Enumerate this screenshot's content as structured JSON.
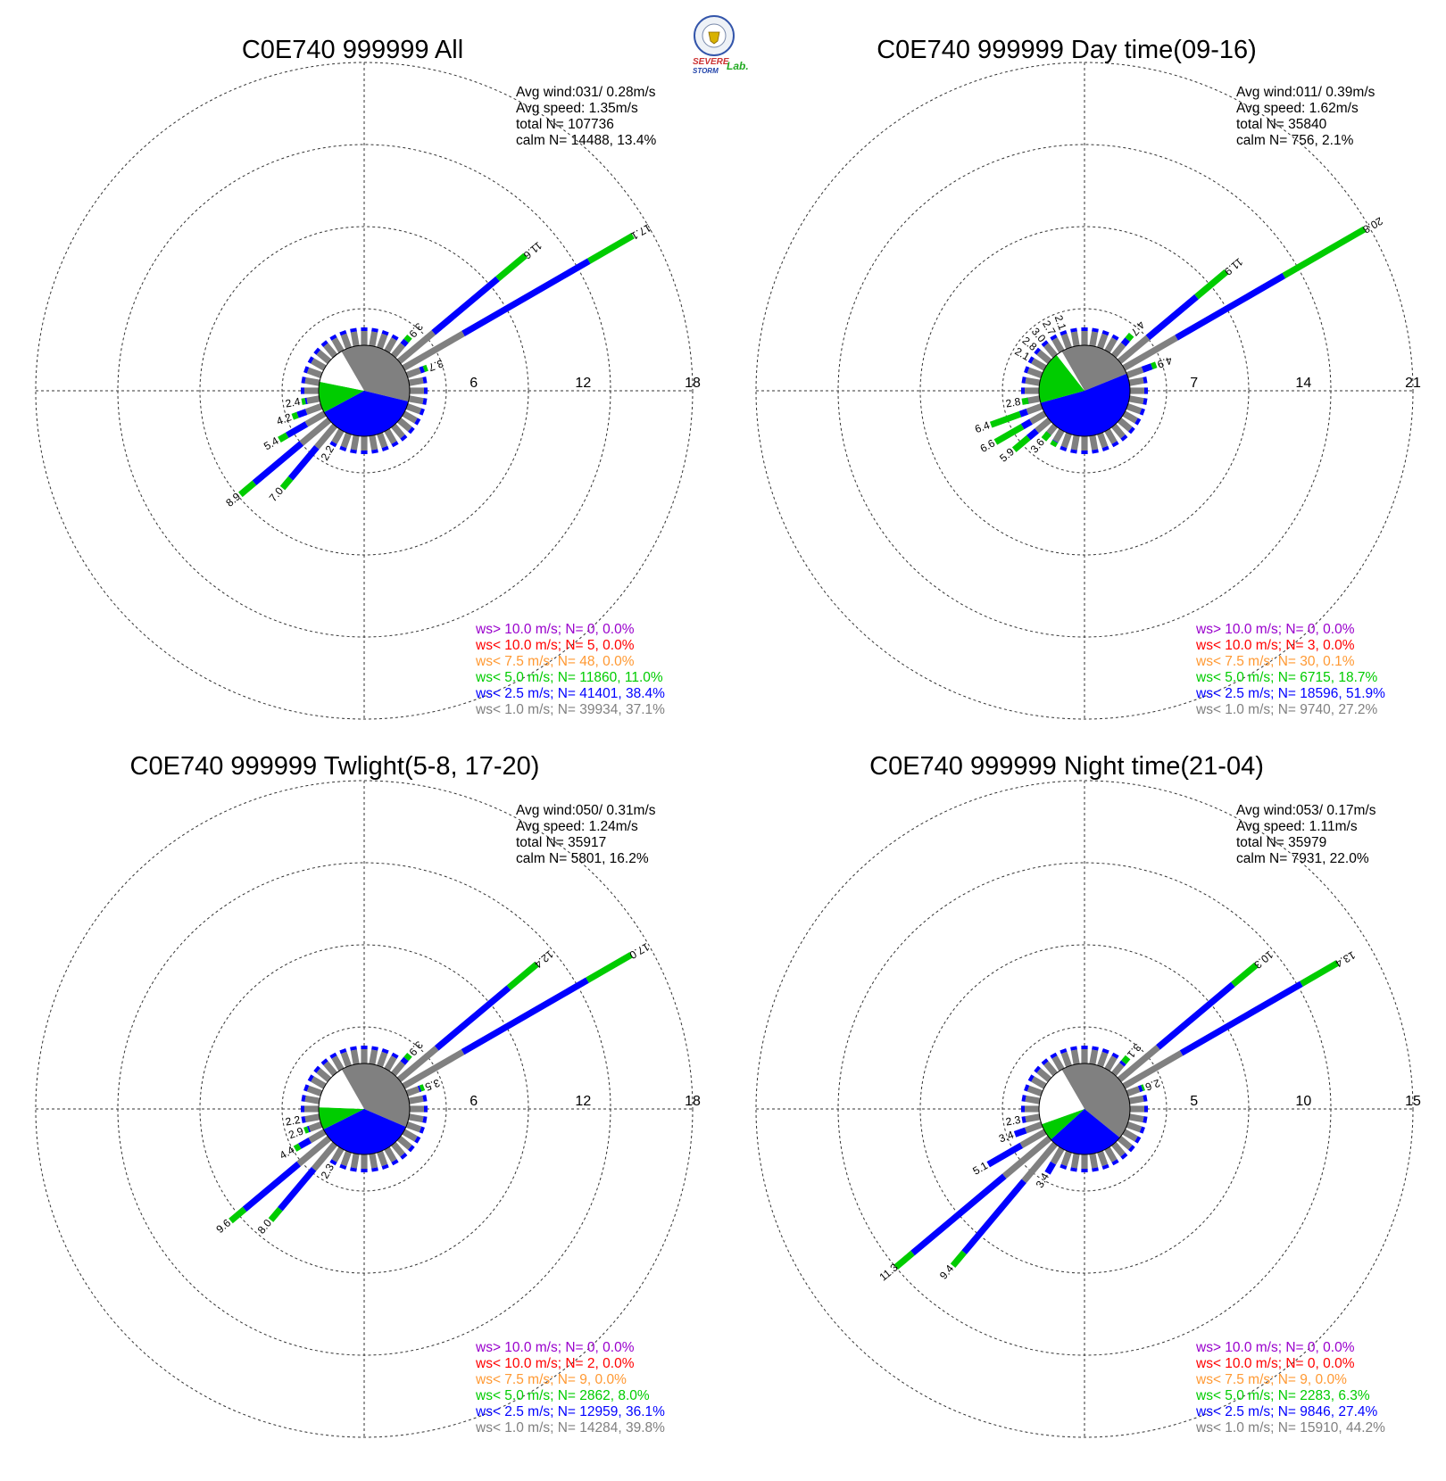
{
  "logo": {
    "text_a": "SEVERE",
    "text_b": "STORM",
    "text_c": "Lab."
  },
  "colors": {
    "ws_gt_10": "#9900cc",
    "ws_lt_10": "#ff0000",
    "ws_lt_7_5": "#ff9933",
    "ws_lt_5": "#00cc00",
    "ws_lt_2_5": "#0000ff",
    "ws_lt_1": "#808080",
    "calm": "#ffffff"
  },
  "chart_data": [
    {
      "type": "wind rose",
      "title": "C0E740 999999 All",
      "stats": [
        "Avg wind:031/ 0.28m/s",
        "Avg speed: 1.35m/s",
        "total N=     107736",
        "calm N=  14488,  13.4%"
      ],
      "rmax": 18,
      "ticks": [
        "6",
        "12",
        "18"
      ],
      "legend": [
        "ws> 10.0 m/s; N=     0,  0.0%",
        "ws< 10.0 m/s; N=     5,  0.0%",
        "ws<  7.5 m/s; N=    48,  0.0%",
        "ws<  5.0 m/s; N= 11860, 11.0%",
        "ws<  2.5 m/s; N= 41401, 38.4%",
        "ws<  1.0 m/s; N= 39934, 37.1%"
      ],
      "pie_deg": {
        "ws_lt_1": 133.6,
        "ws_lt_2_5": 138.2,
        "ws_lt_5": 39.6,
        "calm": 48.2
      },
      "petals": [
        {
          "dir": 0,
          "total": 1.8,
          "green": 0
        },
        {
          "dir": 10,
          "total": 1.8,
          "green": 0
        },
        {
          "dir": 20,
          "total": 2.0,
          "green": 0
        },
        {
          "dir": 30,
          "total": 2.6,
          "green": 0
        },
        {
          "dir": 40,
          "total": 3.9,
          "green": 0.3,
          "label": "3.9"
        },
        {
          "dir": 50,
          "total": 11.6,
          "green": 2.0,
          "label": "11.6"
        },
        {
          "dir": 60,
          "total": 17.1,
          "green": 2.8,
          "label": "17.1"
        },
        {
          "dir": 70,
          "total": 3.7,
          "green": 0.2,
          "label": "3.7"
        },
        {
          "dir": 80,
          "total": 2.2,
          "green": 0
        },
        {
          "dir": 90,
          "total": 1.5,
          "green": 0
        },
        {
          "dir": 100,
          "total": 1.5,
          "green": 0
        },
        {
          "dir": 110,
          "total": 1.5,
          "green": 0
        },
        {
          "dir": 120,
          "total": 1.5,
          "green": 0
        },
        {
          "dir": 130,
          "total": 1.5,
          "green": 0
        },
        {
          "dir": 140,
          "total": 1.5,
          "green": 0
        },
        {
          "dir": 150,
          "total": 1.5,
          "green": 0
        },
        {
          "dir": 160,
          "total": 1.5,
          "green": 0
        },
        {
          "dir": 170,
          "total": 1.5,
          "green": 0
        },
        {
          "dir": 180,
          "total": 1.5,
          "green": 0
        },
        {
          "dir": 190,
          "total": 1.7,
          "green": 0
        },
        {
          "dir": 200,
          "total": 2.0,
          "green": 0
        },
        {
          "dir": 210,
          "total": 2.2,
          "green": 0,
          "label": "2.2"
        },
        {
          "dir": 220,
          "total": 7.0,
          "green": 0.7,
          "label": "7.0"
        },
        {
          "dir": 230,
          "total": 8.9,
          "green": 1.0,
          "label": "8.9"
        },
        {
          "dir": 240,
          "total": 5.4,
          "green": 0.5,
          "label": "5.4"
        },
        {
          "dir": 250,
          "total": 4.2,
          "green": 0.3,
          "label": "4.2"
        },
        {
          "dir": 260,
          "total": 2.4,
          "green": 0.2,
          "label": "2.4"
        },
        {
          "dir": 270,
          "total": 2.0,
          "green": 0
        },
        {
          "dir": 280,
          "total": 2.0,
          "green": 0
        },
        {
          "dir": 290,
          "total": 2.0,
          "green": 0
        },
        {
          "dir": 300,
          "total": 2.0,
          "green": 0
        },
        {
          "dir": 310,
          "total": 2.2,
          "green": 0
        },
        {
          "dir": 320,
          "total": 2.0,
          "green": 0
        },
        {
          "dir": 330,
          "total": 2.0,
          "green": 0
        },
        {
          "dir": 340,
          "total": 2.0,
          "green": 0
        },
        {
          "dir": 350,
          "total": 1.9,
          "green": 0
        }
      ]
    },
    {
      "type": "wind rose",
      "title": "C0E740 999999 Day time(09-16)",
      "stats": [
        "Avg wind:011/ 0.39m/s",
        "Avg speed: 1.62m/s",
        "total N=      35840",
        "calm N=   756,   2.1%"
      ],
      "rmax": 21,
      "ticks": [
        "7",
        "14",
        "21"
      ],
      "legend": [
        "ws> 10.0 m/s; N=     0,  0.0%",
        "ws< 10.0 m/s; N=     3,  0.0%",
        "ws<  7.5 m/s; N=    30,  0.1%",
        "ws<  5.0 m/s; N=  6715, 18.7%",
        "ws<  2.5 m/s; N= 18596, 51.9%",
        "ws<  1.0 m/s; N=  9740, 27.2%"
      ],
      "pie_deg": {
        "ws_lt_1": 97.9,
        "ws_lt_2_5": 186.8,
        "ws_lt_5": 67.3,
        "calm": 8
      },
      "petals": [
        {
          "dir": 0,
          "total": 2.0,
          "green": 0
        },
        {
          "dir": 10,
          "total": 2.2,
          "green": 0
        },
        {
          "dir": 20,
          "total": 2.4,
          "green": 0
        },
        {
          "dir": 30,
          "total": 2.8,
          "green": 0
        },
        {
          "dir": 40,
          "total": 4.7,
          "green": 0.4,
          "label": "4.7"
        },
        {
          "dir": 50,
          "total": 11.9,
          "green": 2.5,
          "label": "11.9"
        },
        {
          "dir": 60,
          "total": 20.8,
          "green": 6.0,
          "label": "20.8"
        },
        {
          "dir": 70,
          "total": 4.9,
          "green": 0.3,
          "label": "4.9"
        },
        {
          "dir": 80,
          "total": 2.4,
          "green": 0
        },
        {
          "dir": 90,
          "total": 2.0,
          "green": 0
        },
        {
          "dir": 100,
          "total": 1.3,
          "green": 0
        },
        {
          "dir": 110,
          "total": 1.3,
          "green": 0
        },
        {
          "dir": 120,
          "total": 1.3,
          "green": 0
        },
        {
          "dir": 130,
          "total": 1.3,
          "green": 0
        },
        {
          "dir": 140,
          "total": 1.3,
          "green": 0
        },
        {
          "dir": 150,
          "total": 1.3,
          "green": 0
        },
        {
          "dir": 160,
          "total": 1.3,
          "green": 0
        },
        {
          "dir": 170,
          "total": 1.3,
          "green": 0
        },
        {
          "dir": 180,
          "total": 1.3,
          "green": 0
        },
        {
          "dir": 190,
          "total": 1.3,
          "green": 0
        },
        {
          "dir": 200,
          "total": 1.5,
          "green": 0
        },
        {
          "dir": 210,
          "total": 2.4,
          "green": 0.3
        },
        {
          "dir": 220,
          "total": 3.6,
          "green": 0.5,
          "label": "3.6"
        },
        {
          "dir": 230,
          "total": 5.9,
          "green": 1.2,
          "label": "5.9"
        },
        {
          "dir": 240,
          "total": 6.6,
          "green": 2.0,
          "label": "6.6"
        },
        {
          "dir": 250,
          "total": 6.4,
          "green": 2.0,
          "label": "6.4"
        },
        {
          "dir": 260,
          "total": 2.8,
          "green": 0.4,
          "label": "2.8"
        },
        {
          "dir": 270,
          "total": 2.4,
          "green": 0
        },
        {
          "dir": 280,
          "total": 2.4,
          "green": 0
        },
        {
          "dir": 290,
          "total": 2.4,
          "green": 0
        },
        {
          "dir": 300,
          "total": 2.1,
          "green": 0,
          "label": "2.1"
        },
        {
          "dir": 310,
          "total": 2.8,
          "green": 0,
          "label": "2.8"
        },
        {
          "dir": 320,
          "total": 3.0,
          "green": 0,
          "label": "3.0"
        },
        {
          "dir": 330,
          "total": 2.7,
          "green": 0,
          "label": "2.7"
        },
        {
          "dir": 340,
          "total": 2.1,
          "green": 0,
          "label": "2.1"
        },
        {
          "dir": 350,
          "total": 1.9,
          "green": 0
        }
      ]
    },
    {
      "type": "wind rose",
      "title": "C0E740 999999 Twlight(5-8, 17-20)",
      "stats": [
        "Avg wind:050/ 0.31m/s",
        "Avg speed: 1.24m/s",
        "total N=      35917",
        "calm N=  5801,  16.2%"
      ],
      "rmax": 18,
      "ticks": [
        "6",
        "12",
        "18"
      ],
      "legend": [
        "ws> 10.0 m/s; N=     0,  0.0%",
        "ws< 10.0 m/s; N=     2,  0.0%",
        "ws<  7.5 m/s; N=     9,  0.0%",
        "ws<  5.0 m/s; N=  2862,  8.0%",
        "ws<  2.5 m/s; N= 12959, 36.1%",
        "ws<  1.0 m/s; N= 14284, 39.8%"
      ],
      "pie_deg": {
        "ws_lt_1": 143.3,
        "ws_lt_2_5": 130.0,
        "ws_lt_5": 28.8,
        "calm": 58.3
      },
      "petals": [
        {
          "dir": 0,
          "total": 1.9,
          "green": 0
        },
        {
          "dir": 10,
          "total": 1.6,
          "green": 0
        },
        {
          "dir": 20,
          "total": 1.9,
          "green": 0
        },
        {
          "dir": 30,
          "total": 2.6,
          "green": 0
        },
        {
          "dir": 40,
          "total": 3.9,
          "green": 0.3,
          "label": "3.9"
        },
        {
          "dir": 50,
          "total": 12.4,
          "green": 2.0,
          "label": "12.4"
        },
        {
          "dir": 60,
          "total": 17.0,
          "green": 2.8,
          "label": "17.0"
        },
        {
          "dir": 70,
          "total": 3.5,
          "green": 0.2,
          "label": "3.5"
        },
        {
          "dir": 80,
          "total": 2.2,
          "green": 0
        },
        {
          "dir": 90,
          "total": 1.6,
          "green": 0
        },
        {
          "dir": 100,
          "total": 1.4,
          "green": 0
        },
        {
          "dir": 110,
          "total": 1.4,
          "green": 0
        },
        {
          "dir": 120,
          "total": 1.4,
          "green": 0
        },
        {
          "dir": 130,
          "total": 1.4,
          "green": 0
        },
        {
          "dir": 140,
          "total": 1.4,
          "green": 0
        },
        {
          "dir": 150,
          "total": 1.4,
          "green": 0
        },
        {
          "dir": 160,
          "total": 1.4,
          "green": 0
        },
        {
          "dir": 170,
          "total": 1.4,
          "green": 0
        },
        {
          "dir": 180,
          "total": 1.4,
          "green": 0
        },
        {
          "dir": 190,
          "total": 1.7,
          "green": 0
        },
        {
          "dir": 200,
          "total": 2.0,
          "green": 0
        },
        {
          "dir": 210,
          "total": 2.3,
          "green": 0,
          "label": "2.3"
        },
        {
          "dir": 220,
          "total": 8.0,
          "green": 0.8,
          "label": "8.0"
        },
        {
          "dir": 230,
          "total": 9.6,
          "green": 1.0,
          "label": "9.6"
        },
        {
          "dir": 240,
          "total": 4.4,
          "green": 0.3,
          "label": "4.4"
        },
        {
          "dir": 250,
          "total": 2.9,
          "green": 0.2,
          "label": "2.9"
        },
        {
          "dir": 260,
          "total": 2.2,
          "green": 0,
          "label": "2.2"
        },
        {
          "dir": 270,
          "total": 2.1,
          "green": 0
        },
        {
          "dir": 280,
          "total": 2.1,
          "green": 0
        },
        {
          "dir": 290,
          "total": 2.1,
          "green": 0
        },
        {
          "dir": 300,
          "total": 2.1,
          "green": 0
        },
        {
          "dir": 310,
          "total": 2.1,
          "green": 0
        },
        {
          "dir": 320,
          "total": 2.1,
          "green": 0
        },
        {
          "dir": 330,
          "total": 2.0,
          "green": 0
        },
        {
          "dir": 340,
          "total": 1.9,
          "green": 0
        },
        {
          "dir": 350,
          "total": 1.8,
          "green": 0
        }
      ]
    },
    {
      "type": "wind rose",
      "title": "C0E740 999999 Night time(21-04)",
      "stats": [
        "Avg wind:053/ 0.17m/s",
        "Avg speed: 1.11m/s",
        "total N=      35979",
        "calm N=  7931,  22.0%"
      ],
      "rmax": 15,
      "ticks": [
        "5",
        "10",
        "15"
      ],
      "legend": [
        "ws> 10.0 m/s; N=     0,  0.0%",
        "ws< 10.0 m/s; N=     0,  0.0%",
        "ws<  7.5 m/s; N=     9,  0.0%",
        "ws<  5.0 m/s; N=  2283,  6.3%",
        "ws<  2.5 m/s; N=  9846, 27.4%",
        "ws<  1.0 m/s; N= 15910, 44.2%"
      ],
      "pie_deg": {
        "ws_lt_1": 159.1,
        "ws_lt_2_5": 98.6,
        "ws_lt_5": 22.7,
        "calm": 79.6
      },
      "petals": [
        {
          "dir": 0,
          "total": 1.6,
          "green": 0
        },
        {
          "dir": 10,
          "total": 1.6,
          "green": 0
        },
        {
          "dir": 20,
          "total": 1.8,
          "green": 0
        },
        {
          "dir": 30,
          "total": 2.0,
          "green": 0
        },
        {
          "dir": 40,
          "total": 3.1,
          "green": 0.3,
          "label": "3.1"
        },
        {
          "dir": 50,
          "total": 10.3,
          "green": 1.4,
          "label": "10.3"
        },
        {
          "dir": 60,
          "total": 13.4,
          "green": 1.9,
          "label": "13.4"
        },
        {
          "dir": 70,
          "total": 2.6,
          "green": 0.1,
          "label": "2.6"
        },
        {
          "dir": 80,
          "total": 1.8,
          "green": 0
        },
        {
          "dir": 90,
          "total": 1.3,
          "green": 0
        },
        {
          "dir": 100,
          "total": 1.1,
          "green": 0
        },
        {
          "dir": 110,
          "total": 1.1,
          "green": 0
        },
        {
          "dir": 120,
          "total": 1.1,
          "green": 0
        },
        {
          "dir": 130,
          "total": 1.1,
          "green": 0
        },
        {
          "dir": 140,
          "total": 1.1,
          "green": 0
        },
        {
          "dir": 150,
          "total": 1.1,
          "green": 0
        },
        {
          "dir": 160,
          "total": 1.1,
          "green": 0
        },
        {
          "dir": 170,
          "total": 1.1,
          "green": 0
        },
        {
          "dir": 180,
          "total": 1.2,
          "green": 0
        },
        {
          "dir": 190,
          "total": 1.4,
          "green": 0
        },
        {
          "dir": 200,
          "total": 1.7,
          "green": 0
        },
        {
          "dir": 210,
          "total": 3.4,
          "green": 0,
          "label": "3.4"
        },
        {
          "dir": 220,
          "total": 9.4,
          "green": 0.8,
          "label": "9.4"
        },
        {
          "dir": 230,
          "total": 11.3,
          "green": 1.0,
          "label": "11.3"
        },
        {
          "dir": 240,
          "total": 5.1,
          "green": 0,
          "label": "5.1"
        },
        {
          "dir": 250,
          "total": 3.4,
          "green": 0,
          "label": "3.4"
        },
        {
          "dir": 260,
          "total": 2.3,
          "green": 0,
          "label": "2.3"
        },
        {
          "dir": 270,
          "total": 1.9,
          "green": 0
        },
        {
          "dir": 280,
          "total": 1.9,
          "green": 0
        },
        {
          "dir": 290,
          "total": 1.9,
          "green": 0
        },
        {
          "dir": 300,
          "total": 1.9,
          "green": 0
        },
        {
          "dir": 310,
          "total": 1.9,
          "green": 0
        },
        {
          "dir": 320,
          "total": 1.8,
          "green": 0
        },
        {
          "dir": 330,
          "total": 1.8,
          "green": 0
        },
        {
          "dir": 340,
          "total": 1.6,
          "green": 0
        },
        {
          "dir": 350,
          "total": 1.5,
          "green": 0
        }
      ]
    }
  ]
}
